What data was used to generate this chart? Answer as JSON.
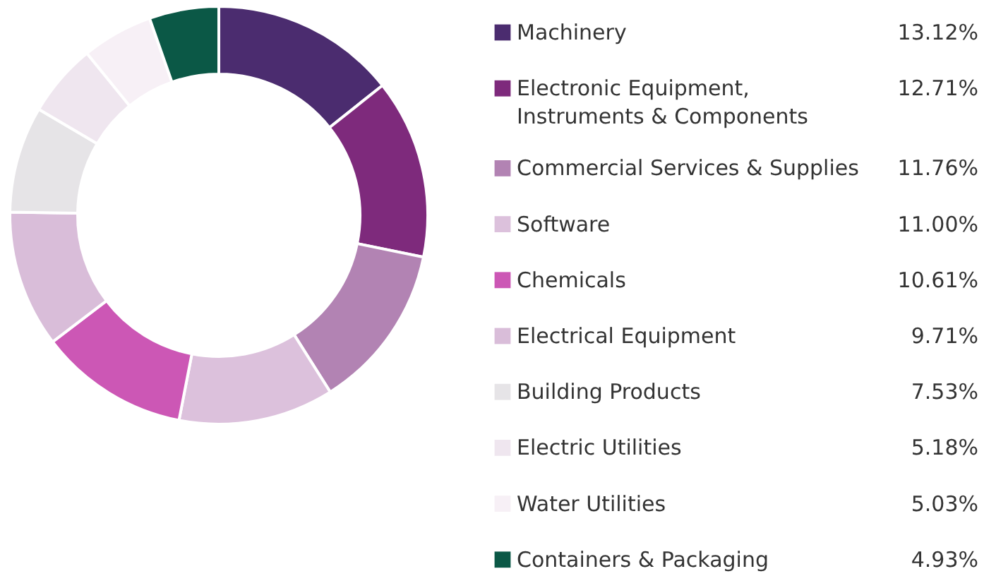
{
  "chart_data": {
    "type": "donut",
    "categories": [
      "Machinery",
      "Electronic Equipment, Instruments & Components",
      "Commercial Services & Supplies",
      "Software",
      "Chemicals",
      "Electrical Equipment",
      "Building Products",
      "Electric Utilities",
      "Water Utilities",
      "Containers & Packaging"
    ],
    "values": [
      13.12,
      12.71,
      11.76,
      11.0,
      10.61,
      9.71,
      7.53,
      5.18,
      5.03,
      4.93
    ],
    "value_labels": [
      "13.12%",
      "12.71%",
      "11.76%",
      "11.00%",
      "10.61%",
      "9.71%",
      "7.53%",
      "5.18%",
      "5.03%",
      "4.93%"
    ],
    "colors": [
      "#4b2c6f",
      "#7e2a7c",
      "#b283b3",
      "#dcc1dc",
      "#cc57b5",
      "#d9bdd9",
      "#e6e4e7",
      "#efe6ef",
      "#f7f0f6",
      "#0b5846"
    ],
    "legend": "right"
  }
}
